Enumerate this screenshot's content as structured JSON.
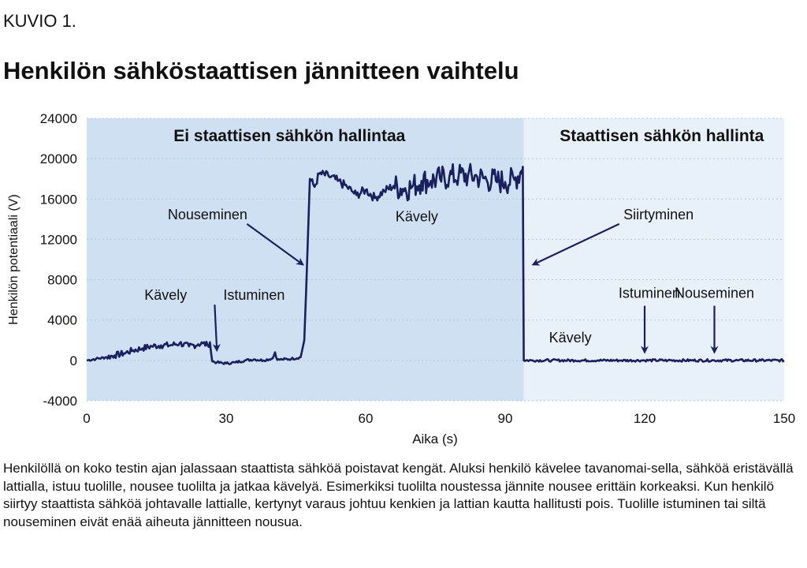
{
  "header": {
    "kuvio": "KUVIO 1.",
    "title": "Henkilön sähköstaattisen jännitteen vaihtelu"
  },
  "caption": "Henkilöllä on koko testin ajan jalassaan staattista sähköä poistavat kengät. Aluksi henkilö kävelee tavanomai-sella, sähköä eristävällä lattialla, istuu tuolille, nousee tuolilta ja jatkaa kävelyä. Esimerkiksi tuolilta noustessa jännite nousee erittäin korkeaksi. Kun henkilö siirtyy staattista sähköä johtavalle lattialle, kertynyt varaus johtuu kenkien ja lattian kautta hallitusti pois. Tuolille istuminen tai siltä nouseminen eivät enää aiheuta jännitteen nousua.",
  "colors": {
    "line": "#1a1f5e",
    "region_left": "#cfe0f2",
    "region_right": "#e8f0fa",
    "grid": "#b8c4d4"
  },
  "chart_data": {
    "type": "line",
    "xlabel": "Aika (s)",
    "ylabel": "Henkilön potentiaali (V)",
    "xlim": [
      0,
      150
    ],
    "ylim": [
      -4000,
      24000
    ],
    "x_ticks": [
      "0",
      "30",
      "60",
      "90",
      "120",
      "150"
    ],
    "y_ticks": [
      "-4000",
      "0",
      "4000",
      "8000",
      "12000",
      "16000",
      "20000",
      "24000"
    ],
    "grid": "horizontal dotted",
    "regions": [
      {
        "label": "Ei staattisen sähkön hallintaa",
        "x0": 0,
        "x1": 94
      },
      {
        "label": "Staattisen sähkön hallinta",
        "x0": 94,
        "x1": 150
      }
    ],
    "annotations": [
      {
        "text": "Kävely",
        "x": 17,
        "y": 6000
      },
      {
        "text": "Istuminen",
        "x": 36,
        "y": 6000,
        "arrow_to": [
          28,
          1000
        ]
      },
      {
        "text": "Nouseminen",
        "x": 26,
        "y": 14000,
        "arrow_to": [
          46.5,
          9500
        ]
      },
      {
        "text": "Kävely",
        "x": 71,
        "y": 13800
      },
      {
        "text": "Siirtyminen",
        "x": 123,
        "y": 14000,
        "arrow_to": [
          96,
          9500
        ]
      },
      {
        "text": "Kävely",
        "x": 104,
        "y": 1800
      },
      {
        "text": "Istuminen",
        "x": 121,
        "y": 6200,
        "arrow_to": [
          120,
          800
        ]
      },
      {
        "text": "Nouseminen",
        "x": 135,
        "y": 6200,
        "arrow_to": [
          135,
          800
        ]
      }
    ],
    "series": [
      {
        "x": [
          0,
          2,
          4,
          6,
          8,
          10,
          12,
          14,
          16,
          18,
          20,
          22,
          24,
          25,
          26,
          26.5,
          27,
          28,
          30,
          32,
          34,
          36,
          38,
          40,
          40.5,
          41,
          42,
          44,
          46,
          46.8,
          47.2,
          48,
          49,
          50,
          52,
          54,
          56,
          57,
          58,
          60,
          62,
          64,
          66,
          68,
          70,
          72,
          74,
          76,
          78,
          80,
          82,
          84,
          86,
          88,
          90,
          92,
          93.5,
          93.8,
          94,
          96,
          100,
          105,
          110,
          115,
          120,
          125,
          130,
          135,
          140,
          145,
          150
        ],
        "y": [
          0,
          150,
          300,
          500,
          700,
          1000,
          1200,
          1400,
          1500,
          1500,
          1700,
          1400,
          1600,
          1700,
          1500,
          1800,
          -100,
          -200,
          -300,
          -200,
          0,
          100,
          0,
          200,
          800,
          50,
          100,
          150,
          300,
          2000,
          7000,
          18000,
          17200,
          18500,
          18300,
          17800,
          17200,
          16800,
          16400,
          16900,
          16100,
          16800,
          17300,
          17000,
          17200,
          17800,
          17800,
          18000,
          18200,
          18300,
          18300,
          18200,
          17900,
          17800,
          17700,
          17900,
          18800,
          19200,
          0,
          0,
          0,
          0,
          0,
          0,
          0,
          0,
          0,
          0,
          0,
          0,
          0
        ]
      }
    ]
  }
}
